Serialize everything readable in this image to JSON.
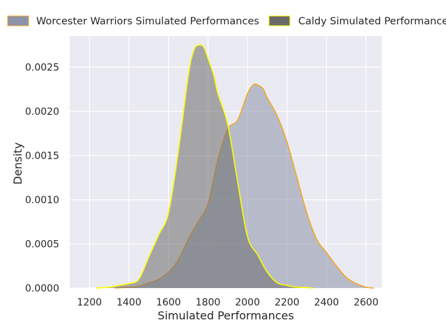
{
  "chart_data": {
    "type": "area",
    "title": "",
    "xlabel": "Simulated Performances",
    "ylabel": "Density",
    "xlim": [
      1100,
      2680
    ],
    "ylim": [
      0,
      0.00285
    ],
    "x_ticks": [
      1200,
      1400,
      1600,
      1800,
      2000,
      2200,
      2400,
      2600
    ],
    "x_tick_labels": [
      "1200",
      "1400",
      "1600",
      "1800",
      "2000",
      "2200",
      "2400",
      "2600"
    ],
    "y_ticks": [
      0,
      0.0005,
      0.001,
      0.0015,
      0.002,
      0.0025
    ],
    "y_tick_labels": [
      "0.0000",
      "0.0005",
      "0.0010",
      "0.0015",
      "0.0020",
      "0.0025"
    ],
    "grid": true,
    "legend_position": "top",
    "series": [
      {
        "name": "Worcester Warriors Simulated Performances",
        "fill": "#8c93a8",
        "line": "#f5a623",
        "x": [
          1330,
          1400,
          1450,
          1500,
          1550,
          1600,
          1650,
          1700,
          1750,
          1800,
          1850,
          1900,
          1950,
          2000,
          2030,
          2050,
          2080,
          2100,
          2150,
          2200,
          2250,
          2300,
          2350,
          2400,
          2450,
          2500,
          2550,
          2600,
          2640
        ],
        "y": [
          0.0,
          1e-05,
          2e-05,
          6e-05,
          0.0001,
          0.00018,
          0.00032,
          0.00055,
          0.00075,
          0.00095,
          0.00145,
          0.0018,
          0.0019,
          0.0022,
          0.0023,
          0.0023,
          0.00225,
          0.00215,
          0.00195,
          0.00165,
          0.00125,
          0.00085,
          0.00055,
          0.0004,
          0.00025,
          0.00012,
          5e-05,
          1e-05,
          0.0
        ]
      },
      {
        "name": "Caldy Simulated Performances",
        "fill": "#6b6b6b",
        "line": "#ffff00",
        "x": [
          1230,
          1300,
          1350,
          1400,
          1450,
          1500,
          1550,
          1600,
          1650,
          1700,
          1730,
          1760,
          1780,
          1800,
          1830,
          1850,
          1900,
          1950,
          2000,
          2050,
          2100,
          2150,
          2200,
          2250,
          2300,
          2330
        ],
        "y": [
          0.0,
          1e-05,
          3e-05,
          5e-05,
          0.0001,
          0.00035,
          0.0006,
          0.00085,
          0.00155,
          0.0024,
          0.0027,
          0.00275,
          0.00272,
          0.0026,
          0.0024,
          0.0022,
          0.00185,
          0.0012,
          0.00058,
          0.00038,
          0.00018,
          6e-05,
          3e-05,
          1e-05,
          5e-06,
          0.0
        ]
      }
    ]
  }
}
